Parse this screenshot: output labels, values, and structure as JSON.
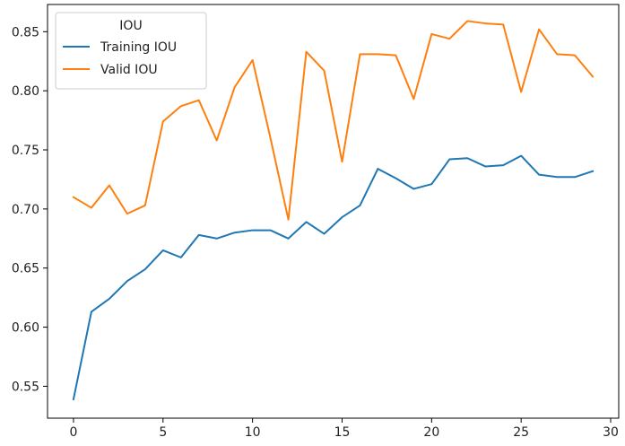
{
  "chart_data": {
    "type": "line",
    "title": "",
    "xlabel": "",
    "ylabel": "",
    "x": [
      0,
      1,
      2,
      3,
      4,
      5,
      6,
      7,
      8,
      9,
      10,
      11,
      12,
      13,
      14,
      15,
      16,
      17,
      18,
      19,
      20,
      21,
      22,
      23,
      24,
      25,
      26,
      27,
      28,
      29
    ],
    "xlim": [
      -1.45,
      30.45
    ],
    "ylim": [
      0.523,
      0.873
    ],
    "xticks": [
      0,
      5,
      10,
      15,
      20,
      25,
      30
    ],
    "xtick_labels": [
      "0",
      "5",
      "10",
      "15",
      "20",
      "25",
      "30"
    ],
    "yticks": [
      0.55,
      0.6,
      0.65,
      0.7,
      0.75,
      0.8,
      0.85
    ],
    "ytick_labels": [
      "0.55",
      "0.60",
      "0.65",
      "0.70",
      "0.75",
      "0.80",
      "0.85"
    ],
    "grid": false,
    "legend": {
      "title": "IOU",
      "placement": "top-left"
    },
    "series": [
      {
        "name": "Training IOU",
        "color": "#1f77b4",
        "values": [
          0.539,
          0.613,
          0.624,
          0.639,
          0.649,
          0.665,
          0.659,
          0.678,
          0.675,
          0.68,
          0.682,
          0.682,
          0.675,
          0.689,
          0.679,
          0.693,
          0.703,
          0.734,
          0.726,
          0.717,
          0.721,
          0.742,
          0.743,
          0.736,
          0.737,
          0.745,
          0.729,
          0.727,
          0.727,
          0.732
        ]
      },
      {
        "name": "Valid IOU",
        "color": "#ff7f0e",
        "values": [
          0.71,
          0.701,
          0.72,
          0.696,
          0.703,
          0.774,
          0.787,
          0.792,
          0.758,
          0.803,
          0.826,
          0.76,
          0.691,
          0.833,
          0.817,
          0.74,
          0.831,
          0.831,
          0.83,
          0.793,
          0.848,
          0.844,
          0.859,
          0.857,
          0.856,
          0.799,
          0.852,
          0.831,
          0.83,
          0.812
        ]
      }
    ]
  }
}
